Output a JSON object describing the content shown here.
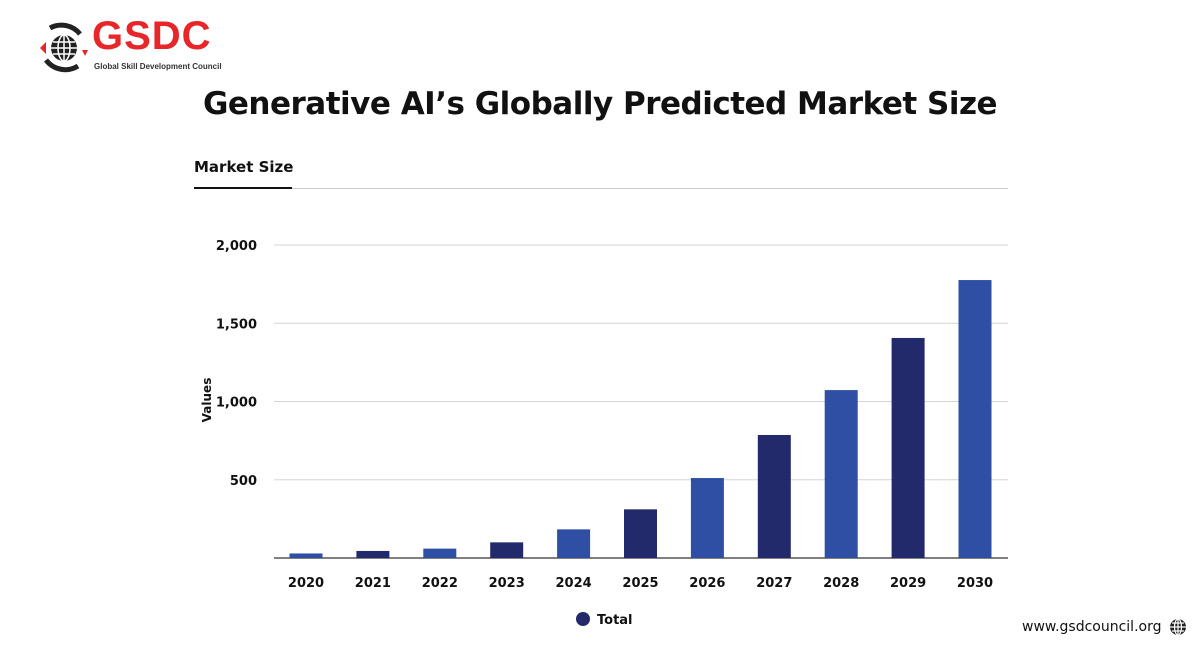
{
  "brand": {
    "name": "GSDC",
    "tagline": "Global Skill Development Council",
    "accent": "#e8262a"
  },
  "header": {
    "title": "Generative AI’s Globally Predicted Market Size",
    "tab": "Market Size"
  },
  "footer": {
    "website": "www.gsdcouncil.org"
  },
  "chart_data": {
    "type": "bar",
    "title": "",
    "xlabel": "",
    "ylabel": "Values",
    "categories": [
      "2020",
      "2021",
      "2022",
      "2023",
      "2024",
      "2025",
      "2026",
      "2027",
      "2028",
      "2029",
      "2030"
    ],
    "series": [
      {
        "name": "Total",
        "values": [
          29,
          45,
          60,
          100,
          183,
          311,
          511,
          786,
          1073,
          1406,
          1776
        ]
      }
    ],
    "ylim": [
      0,
      2000
    ],
    "yticks": [
      500,
      1000,
      1500,
      2000
    ],
    "ytick_labels": [
      "500",
      "1,000",
      "1,500",
      "2,000"
    ],
    "grid": true,
    "legend": "bottom-center",
    "colors": {
      "light": "#2e4fa3",
      "dark": "#232a6b",
      "legend": "#232a6b"
    }
  }
}
